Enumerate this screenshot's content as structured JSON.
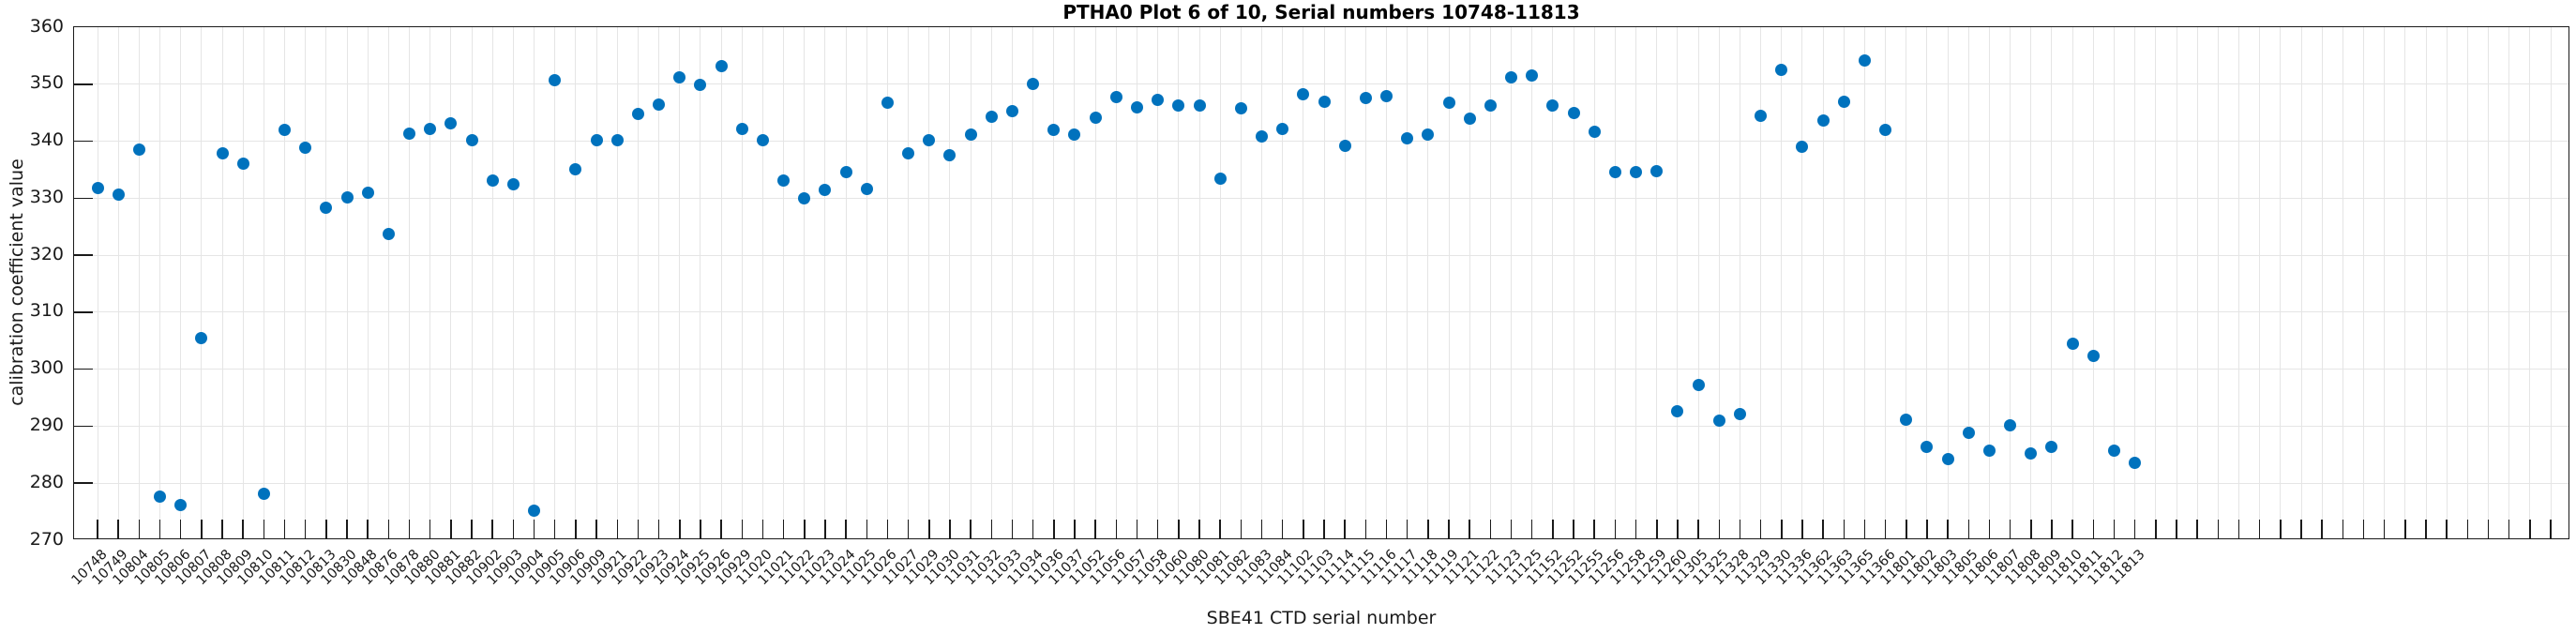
{
  "chart_data": {
    "type": "scatter",
    "title": "PTHA0 Plot 6 of 10, Serial numbers 10748-11813",
    "xlabel": "SBE41 CTD serial number",
    "ylabel": "calibration coefficient value",
    "ylim": [
      270,
      360
    ],
    "ytick_labels": [
      "270",
      "280",
      "290",
      "300",
      "310",
      "320",
      "330",
      "340",
      "350",
      "360"
    ],
    "grid": true,
    "legend": "none",
    "marker_color": "#0072BD",
    "axis_color": "#1a1a1a",
    "grid_color": "#e5e5e5",
    "categories": [
      "10748",
      "10749",
      "10804",
      "10805",
      "10806",
      "10807",
      "10808",
      "10809",
      "10810",
      "10811",
      "10812",
      "10813",
      "10830",
      "10848",
      "10876",
      "10878",
      "10880",
      "10881",
      "10882",
      "10902",
      "10903",
      "10904",
      "10905",
      "10906",
      "10909",
      "10921",
      "10922",
      "10923",
      "10924",
      "10925",
      "10926",
      "10929",
      "11020",
      "11021",
      "11022",
      "11023",
      "11024",
      "11025",
      "11026",
      "11027",
      "11029",
      "11030",
      "11031",
      "11032",
      "11033",
      "11034",
      "11036",
      "11037",
      "11052",
      "11056",
      "11057",
      "11058",
      "11060",
      "11080",
      "11081",
      "11082",
      "11083",
      "11084",
      "11102",
      "11103",
      "11114",
      "11115",
      "11116",
      "11117",
      "11118",
      "11119",
      "11121",
      "11122",
      "11123",
      "11125",
      "11152",
      "11252",
      "11255",
      "11256",
      "11258",
      "11259",
      "11260",
      "11305",
      "11325",
      "11328",
      "11329",
      "11330",
      "11336",
      "11362",
      "11363",
      "11365",
      "11366",
      "11801",
      "11802",
      "11803",
      "11805",
      "11806",
      "11807",
      "11808",
      "11809",
      "11810",
      "11811",
      "11812",
      "11813"
    ],
    "values": [
      331.8,
      330.6,
      338.5,
      277.6,
      276.1,
      305.4,
      337.8,
      336.1,
      278.2,
      342.0,
      338.8,
      328.3,
      330.1,
      331.0,
      323.8,
      341.4,
      342.2,
      343.2,
      340.2,
      333.1,
      332.4,
      275.2,
      350.7,
      335.0,
      340.2,
      340.2,
      344.8,
      346.4,
      351.2,
      349.8,
      353.2,
      342.2,
      340.2,
      333.1,
      330.0,
      331.4,
      334.6,
      331.6,
      346.8,
      337.9,
      340.2,
      337.6,
      341.2,
      344.3,
      345.2,
      350.1,
      342.0,
      341.1,
      344.1,
      347.7,
      346.0,
      347.3,
      346.3,
      346.3,
      333.4,
      345.8,
      340.9,
      342.1,
      348.2,
      347.0,
      339.2,
      347.6,
      347.9,
      340.5,
      341.2,
      346.7,
      344.0,
      346.2,
      351.2,
      351.5,
      346.3,
      344.9,
      341.6,
      334.6,
      334.6,
      334.7,
      292.6,
      297.2,
      291.0,
      292.1,
      344.5,
      352.5,
      339.0,
      343.7,
      346.9,
      354.2,
      342.0,
      291.1,
      286.4,
      284.3,
      288.9,
      285.7,
      290.1,
      285.2,
      286.4,
      304.5,
      302.4,
      285.7,
      283.6
    ]
  }
}
